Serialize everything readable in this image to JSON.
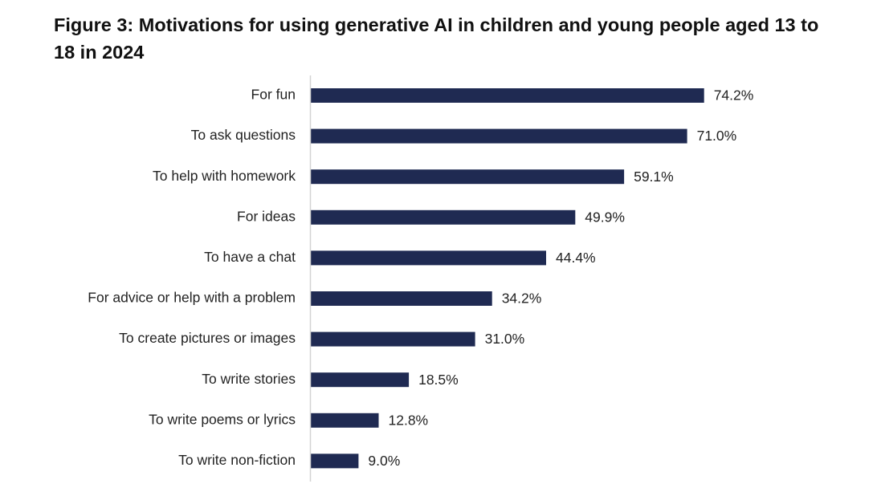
{
  "chart_data": {
    "type": "bar",
    "orientation": "horizontal",
    "title": "Figure 3: Motivations for using generative AI in children and young people aged 13 to 18 in 2024",
    "xlabel": "",
    "ylabel": "",
    "xlim": [
      0,
      80
    ],
    "grid": false,
    "legend": "none",
    "bar_color": "#1f2a52",
    "categories": [
      "For fun",
      "To ask questions",
      "To help with homework",
      "For ideas",
      "To have a chat",
      "For advice or help with a problem",
      "To create pictures or images",
      "To write stories",
      "To write poems or lyrics",
      "To write non-fiction"
    ],
    "values": [
      74.2,
      71.0,
      59.1,
      49.9,
      44.4,
      34.2,
      31.0,
      18.5,
      12.8,
      9.0
    ],
    "value_labels": [
      "74.2%",
      "71.0%",
      "59.1%",
      "49.9%",
      "44.4%",
      "34.2%",
      "31.0%",
      "18.5%",
      "12.8%",
      "9.0%"
    ]
  }
}
